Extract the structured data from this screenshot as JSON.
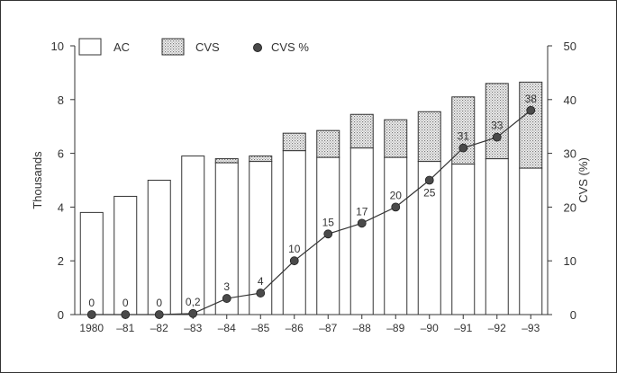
{
  "chart_data": {
    "type": "bar",
    "stacked": true,
    "categories": [
      "1980",
      "–81",
      "–82",
      "–83",
      "–84",
      "–85",
      "–86",
      "–87",
      "–88",
      "–89",
      "–90",
      "–91",
      "–92",
      "–93"
    ],
    "series": [
      {
        "name": "AC",
        "axis": "left",
        "type": "bar",
        "color": "#ffffff",
        "values": [
          3.8,
          4.4,
          5.0,
          5.9,
          5.65,
          5.7,
          6.1,
          5.85,
          6.2,
          5.85,
          5.7,
          5.6,
          5.8,
          5.45
        ]
      },
      {
        "name": "CVS",
        "axis": "left",
        "type": "bar",
        "color": "#d0d0d0",
        "values": [
          0,
          0,
          0,
          0,
          0.15,
          0.2,
          0.65,
          1.0,
          1.25,
          1.4,
          1.85,
          2.5,
          2.8,
          3.2
        ]
      },
      {
        "name": "CVS %",
        "axis": "right",
        "type": "line",
        "color": "#333333",
        "values": [
          0,
          0,
          0,
          0.2,
          3,
          4,
          10,
          15,
          17,
          20,
          25,
          31,
          33,
          38
        ],
        "labels": [
          "0",
          "0",
          "0",
          "0,2",
          "3",
          "4",
          "10",
          "15",
          "17",
          "20",
          "25",
          "31",
          "33",
          "38"
        ]
      }
    ],
    "ylabel": "Thousands",
    "y2label": "CVS (%)",
    "ylim": [
      0,
      10
    ],
    "yticks": [
      "0",
      "2",
      "4",
      "6",
      "8",
      "10"
    ],
    "y2lim": [
      0,
      50
    ],
    "y2ticks": [
      "0",
      "10",
      "20",
      "30",
      "40",
      "50"
    ],
    "grid": false,
    "legend": "top-left"
  }
}
